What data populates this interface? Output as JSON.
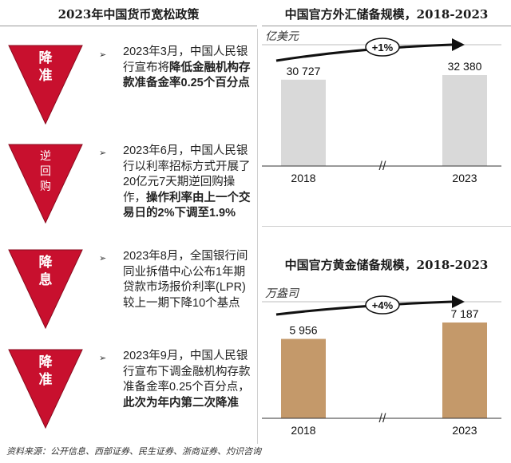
{
  "left_panel": {
    "title": "2023年中国货币宽松政策",
    "policies": [
      {
        "label_lines": [
          "降",
          "准"
        ],
        "text_segments": [
          {
            "text": "2023年3月，中国人民银行宣布将",
            "bold": false
          },
          {
            "text": "降低金融机构存款准备金率0.25个百分点",
            "bold": true
          }
        ]
      },
      {
        "label_lines": [
          "逆",
          "回",
          "购"
        ],
        "text_segments": [
          {
            "text": "2023年6月，中国人民银行以利率招标方式开展了20亿元7天期逆回购操作，",
            "bold": false
          },
          {
            "text": "操作利率由上一个交易日的2%下调至1.9%",
            "bold": true
          }
        ]
      },
      {
        "label_lines": [
          "降",
          "息"
        ],
        "text_segments": [
          {
            "text": "2023年8月，全国银行间同业拆借中心公布1年期贷款市场报价利率(LPR)较上一期下降10个基点",
            "bold": false
          }
        ]
      },
      {
        "label_lines": [
          "降",
          "准"
        ],
        "text_segments": [
          {
            "text": "2023年9月，中国人民银行宣布下调金融机构存款准备金率0.25个百分点，",
            "bold": false
          },
          {
            "text": "此次为年内第二次降准",
            "bold": true
          }
        ]
      }
    ],
    "arrow_glyph": "➢",
    "triangle_color": "#c8102e"
  },
  "source_note": "资料来源：公开信息、西部证券、民生证券、浙商证券、灼识咨询",
  "chart_data": [
    {
      "type": "bar",
      "title": "中国官方外汇储备规模，2018-2023",
      "unit_label": "亿美元",
      "categories": [
        "2018",
        "2023"
      ],
      "values": [
        30727,
        32380
      ],
      "value_labels": [
        "30 727",
        "32 380"
      ],
      "growth_label": "+1%",
      "bar_color": "#d9d9d9",
      "axis_break": "//"
    },
    {
      "type": "bar",
      "title": "中国官方黄金储备规模，2018-2023",
      "unit_label": "万盎司",
      "categories": [
        "2018",
        "2023"
      ],
      "values": [
        5956,
        7187
      ],
      "value_labels": [
        "5 956",
        "7 187"
      ],
      "growth_label": "+4%",
      "bar_color": "#c4996a",
      "axis_break": "//"
    }
  ]
}
